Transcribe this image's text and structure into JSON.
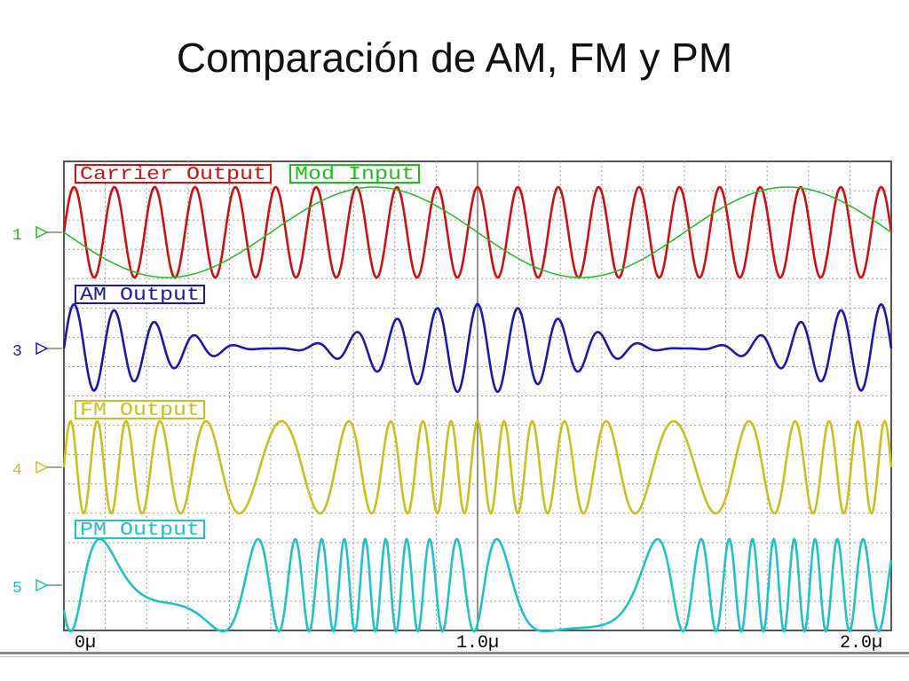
{
  "slide": {
    "title": "Comparación de AM, FM y PM"
  },
  "chart_data": {
    "type": "line",
    "title": "Comparación de AM, FM y PM",
    "xlabel": "",
    "ylabel": "",
    "xlim": [
      0,
      2.0
    ],
    "x_unit": "µs",
    "x_tick_labels": [
      "0µ",
      "1.0µ",
      "2.0µ"
    ],
    "grid": true,
    "channels": [
      {
        "id": "1",
        "marker": "1",
        "labels": [
          "Carrier Output",
          "Mod Input"
        ],
        "colors": [
          "#cc1111",
          "#22bb22"
        ]
      },
      {
        "id": "3",
        "marker": "3",
        "labels": [
          "AM Output"
        ],
        "colors": [
          "#1a1aaa"
        ]
      },
      {
        "id": "4",
        "marker": "4",
        "labels": [
          "FM Output"
        ],
        "colors": [
          "#c8c020"
        ]
      },
      {
        "id": "5",
        "marker": "5",
        "labels": [
          "PM Output"
        ],
        "colors": [
          "#22c0c8"
        ]
      }
    ],
    "series": [
      {
        "name": "Carrier Output",
        "channel": "1",
        "color": "#cc1111",
        "kind": "carrier",
        "cycles_per_us": 10.25,
        "amplitude": 1.0
      },
      {
        "name": "Mod Input",
        "channel": "1",
        "color": "#22bb22",
        "kind": "modulating",
        "cycles_per_us": 1.0,
        "phase_deg": 180,
        "amplitude": 1.0
      },
      {
        "name": "AM Output",
        "channel": "3",
        "color": "#1a1aaa",
        "kind": "am",
        "carrier_cycles_per_us": 10.25,
        "mod_cycles_per_us": 1.0,
        "modulation_index": 1.0,
        "amplitude": 1.0
      },
      {
        "name": "FM Output",
        "channel": "4",
        "color": "#c8c020",
        "kind": "fm",
        "carrier_cycles_per_us": 10.25,
        "mod_cycles_per_us": 1.0,
        "deviation_cycles_per_us": 5.5,
        "amplitude": 1.0
      },
      {
        "name": "PM Output",
        "channel": "5",
        "color": "#22c0c8",
        "kind": "pm",
        "carrier_cycles_per_us": 10.25,
        "mod_cycles_per_us": 1.0,
        "phase_deviation_rad": 10.0,
        "amplitude": 1.0
      }
    ]
  }
}
